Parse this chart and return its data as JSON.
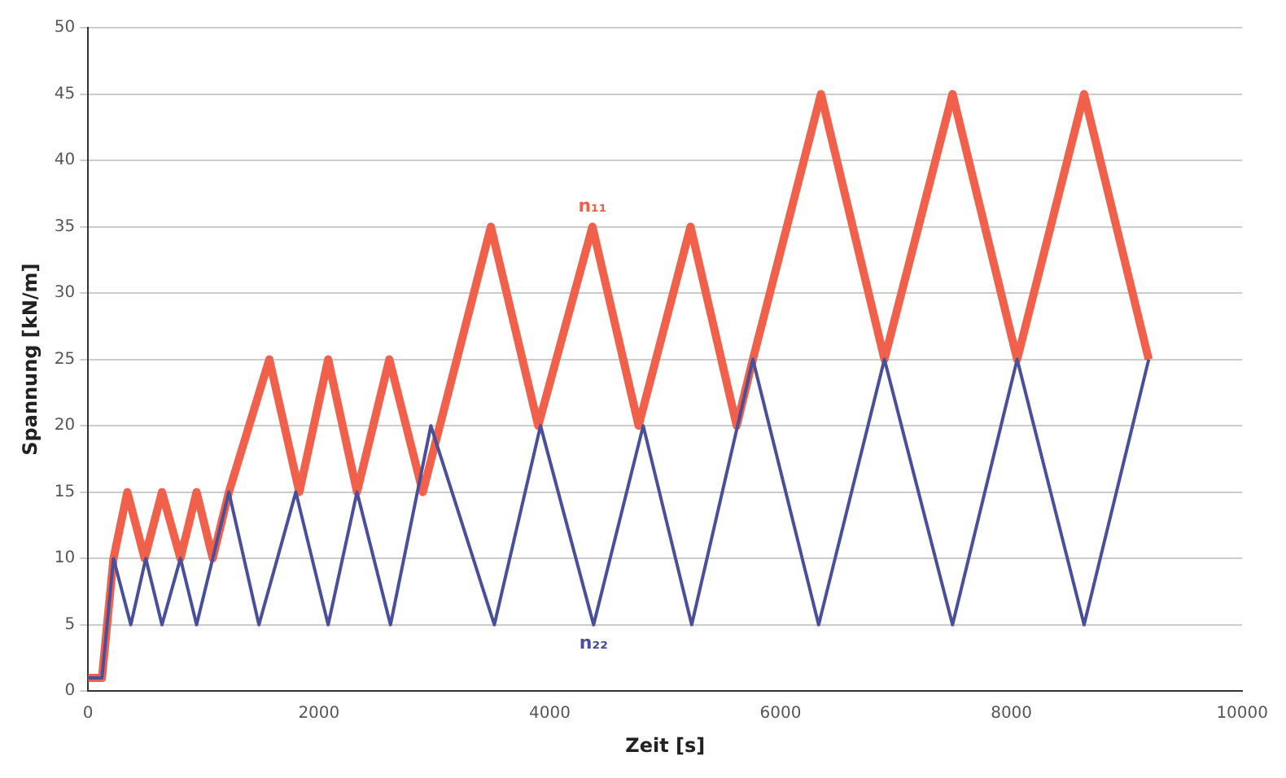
{
  "chart_data": {
    "type": "line",
    "xlabel": "Zeit [s]",
    "ylabel": "Spannung [kN/m]",
    "xlim": [
      0,
      10000
    ],
    "xticks": [
      0,
      2000,
      4000,
      6000,
      8000,
      10000
    ],
    "ylim": [
      0,
      50
    ],
    "yticks": [
      0,
      5,
      10,
      15,
      20,
      25,
      30,
      35,
      40,
      45,
      50
    ],
    "grid": "y",
    "legend": false,
    "marker": "none",
    "line_style": "solid",
    "series": [
      {
        "name": "n₁₁",
        "color": "#f0604a",
        "x": [
          0,
          120,
          220,
          340,
          490,
          640,
          800,
          940,
          1080,
          1220,
          1570,
          1830,
          2080,
          2330,
          2610,
          2900,
          3490,
          3900,
          4370,
          4770,
          5220,
          5620,
          5760,
          6350,
          6900,
          7490,
          8050,
          8630,
          9190
        ],
        "values": [
          1,
          1,
          10,
          15,
          10,
          15,
          10,
          15,
          10,
          15,
          25,
          15,
          25,
          15,
          25,
          15,
          35,
          20,
          35,
          20,
          35,
          20,
          25,
          45,
          25,
          45,
          25,
          45,
          25
        ]
      },
      {
        "name": "n₂₂",
        "color": "#4a4f9a",
        "x": [
          0,
          120,
          220,
          370,
          500,
          640,
          800,
          940,
          1220,
          1480,
          1800,
          2080,
          2330,
          2620,
          2970,
          3520,
          3920,
          4380,
          4810,
          5230,
          5760,
          6330,
          6900,
          7490,
          8050,
          8630,
          9190
        ],
        "values": [
          1,
          1,
          10,
          5,
          10,
          5,
          10,
          5,
          15,
          5,
          15,
          5,
          15,
          5,
          20,
          5,
          20,
          5,
          20,
          5,
          25,
          5,
          25,
          5,
          25,
          5,
          25
        ]
      }
    ]
  }
}
